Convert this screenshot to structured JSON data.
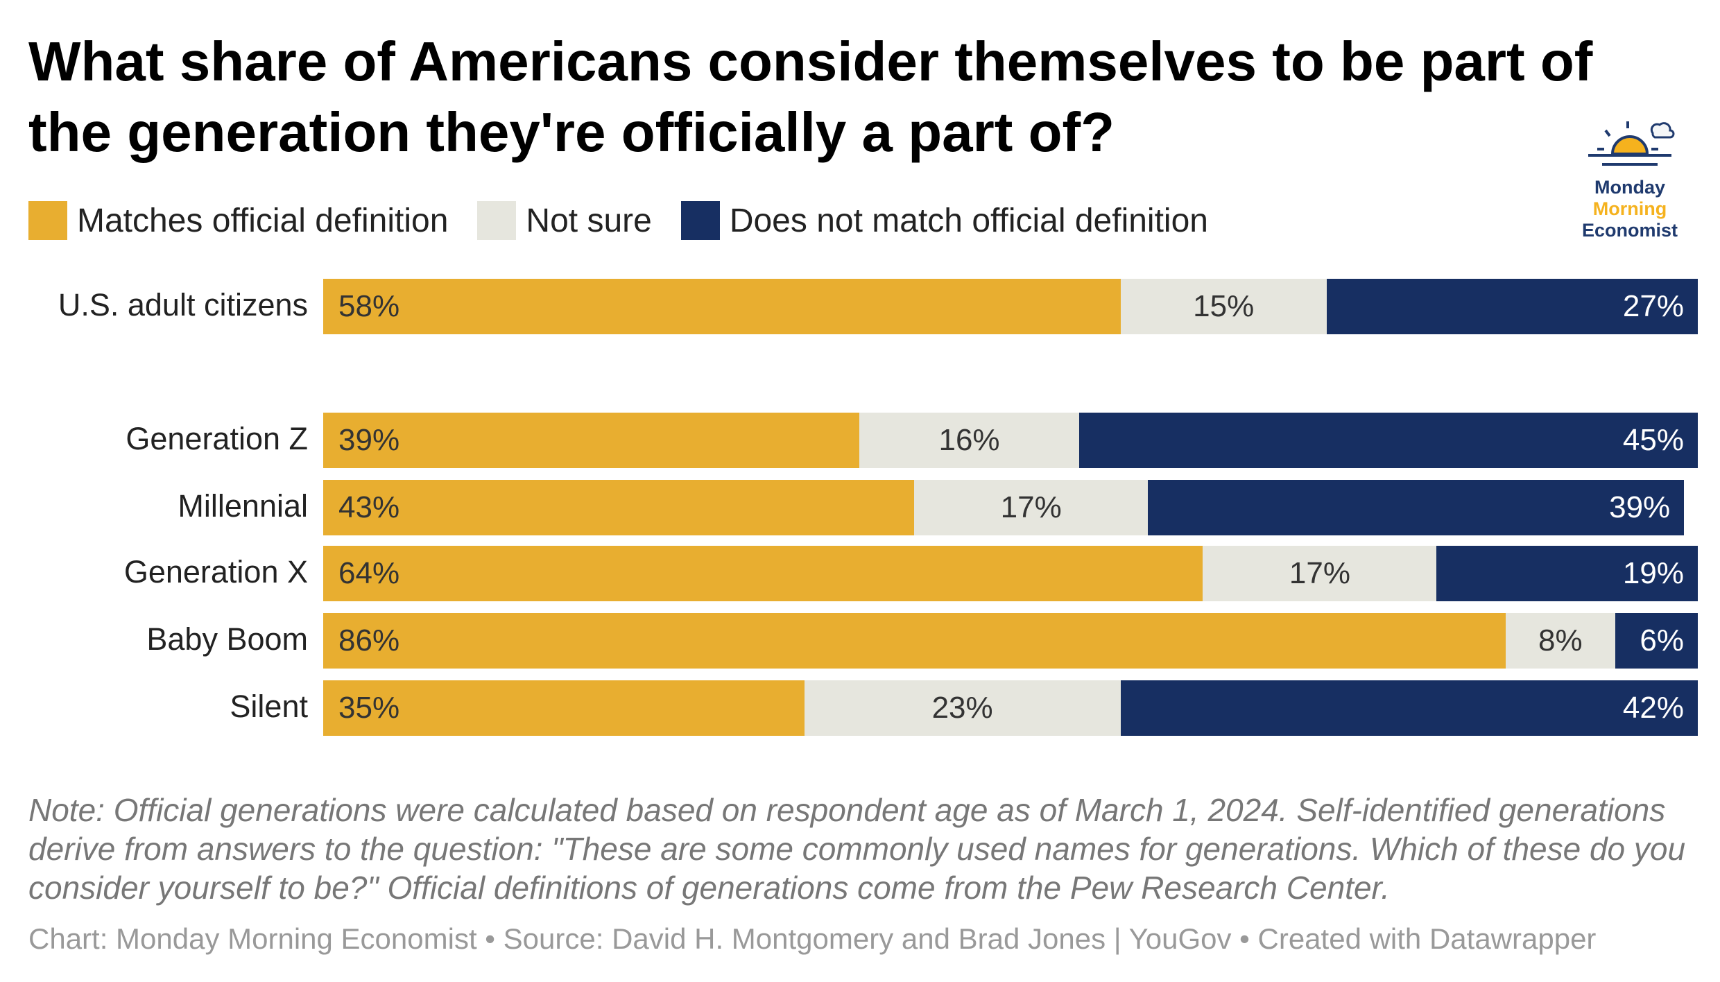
{
  "title": "What share of Americans consider themselves to be part of the generation they're officially a part of?",
  "logo": {
    "line1": "Monday",
    "line2": "Morning",
    "line3": "Economist"
  },
  "note": "Note: Official generations were calculated based on respondent age as of March 1, 2024. Self-identified generations derive from answers to the question: \"These are some commonly used names for generations. Which of these do you consider yourself to be?\" Official definitions of generations come from the Pew Research Center.",
  "footer": "Chart: Monday Morning Economist • Source: David H. Montgomery and Brad Jones | YouGov • Created with Datawrapper",
  "chart_data": {
    "type": "bar",
    "stacked": true,
    "orientation": "horizontal",
    "title": "What share of Americans consider themselves to be part of the generation they're officially a part of?",
    "categories": [
      "U.S. adult citizens",
      "Generation Z",
      "Millennial",
      "Generation X",
      "Baby Boom",
      "Silent"
    ],
    "series": [
      {
        "name": "Matches official definition",
        "color": "#e8ae30",
        "values": [
          58,
          39,
          43,
          64,
          86,
          35
        ]
      },
      {
        "name": "Not sure",
        "color": "#e6e6de",
        "values": [
          15,
          16,
          17,
          17,
          8,
          23
        ]
      },
      {
        "name": "Does not match official definition",
        "color": "#172f62",
        "values": [
          27,
          45,
          39,
          19,
          6,
          42
        ]
      }
    ],
    "xlim": [
      0,
      100
    ],
    "legend": "top-left",
    "grid": false
  }
}
